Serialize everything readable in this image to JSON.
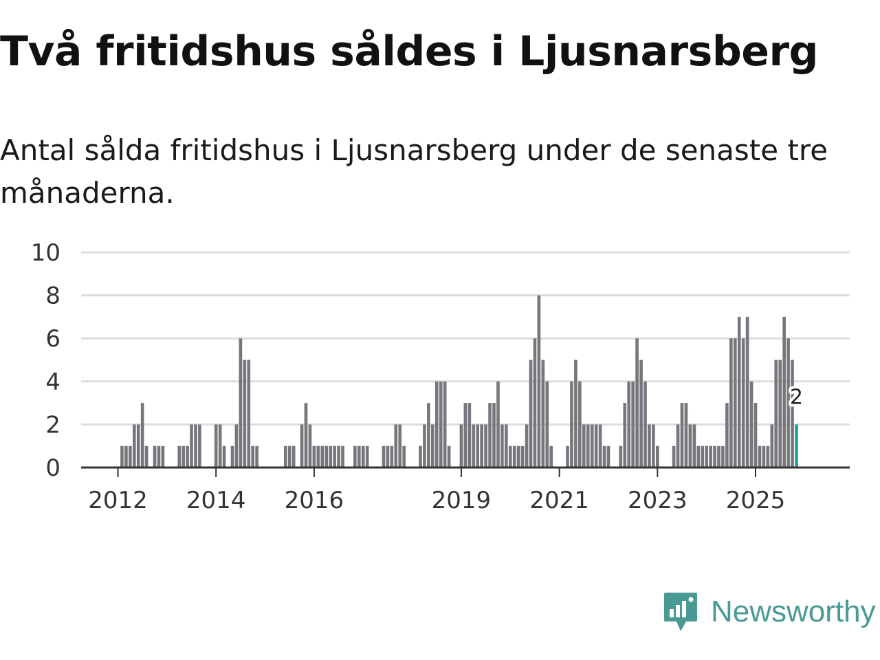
{
  "title": "Två fritidshus såldes i Ljusnarsberg",
  "subtitle": "Antal sålda fritidshus i Ljusnarsberg under de senaste tre månaderna.",
  "brand": {
    "name": "Newsworthy",
    "color": "#4a9a94",
    "icon": "newsworthy-logo-icon"
  },
  "colors": {
    "bar": "#77767c",
    "highlight": "#1f9f94",
    "grid": "#dddddd",
    "axis": "#333333"
  },
  "chart_data": {
    "type": "bar",
    "title": "Två fritidshus såldes i Ljusnarsberg",
    "xlabel": "",
    "ylabel": "",
    "ylim": [
      0,
      10
    ],
    "yticks": [
      0,
      2,
      4,
      6,
      8,
      10
    ],
    "xlim": [
      2011.25,
      2026.92
    ],
    "xticks": [
      {
        "label": "2012",
        "at": 2012.0
      },
      {
        "label": "2014",
        "at": 2014.0
      },
      {
        "label": "2016",
        "at": 2016.0
      },
      {
        "label": "2019",
        "at": 2019.0
      },
      {
        "label": "2021",
        "at": 2021.0
      },
      {
        "label": "2023",
        "at": 2023.0
      },
      {
        "label": "2025",
        "at": 2025.0
      }
    ],
    "start": "2012-01",
    "frequency": "monthly",
    "values": [
      0,
      1,
      1,
      1,
      2,
      2,
      3,
      1,
      0,
      1,
      1,
      1,
      0,
      0,
      0,
      1,
      1,
      1,
      2,
      2,
      2,
      0,
      0,
      0,
      2,
      2,
      1,
      0,
      1,
      2,
      6,
      5,
      5,
      1,
      1,
      0,
      0,
      0,
      0,
      0,
      0,
      1,
      1,
      1,
      0,
      2,
      3,
      2,
      1,
      1,
      1,
      1,
      1,
      1,
      1,
      1,
      0,
      0,
      1,
      1,
      1,
      1,
      0,
      0,
      0,
      1,
      1,
      1,
      2,
      2,
      1,
      0,
      0,
      0,
      1,
      2,
      3,
      2,
      4,
      4,
      4,
      1,
      0,
      0,
      2,
      3,
      3,
      2,
      2,
      2,
      2,
      3,
      3,
      4,
      2,
      2,
      1,
      1,
      1,
      1,
      2,
      5,
      6,
      8,
      5,
      4,
      1,
      0,
      0,
      0,
      1,
      4,
      5,
      4,
      2,
      2,
      2,
      2,
      2,
      1,
      1,
      0,
      0,
      1,
      3,
      4,
      4,
      6,
      5,
      4,
      2,
      2,
      1,
      0,
      0,
      0,
      1,
      2,
      3,
      3,
      2,
      2,
      1,
      1,
      1,
      1,
      1,
      1,
      1,
      3,
      6,
      6,
      7,
      6,
      7,
      4,
      3,
      1,
      1,
      1,
      2,
      5,
      5,
      7,
      6,
      5,
      2
    ],
    "highlight_last": true,
    "annotation": {
      "label": "2",
      "value": 2
    }
  }
}
